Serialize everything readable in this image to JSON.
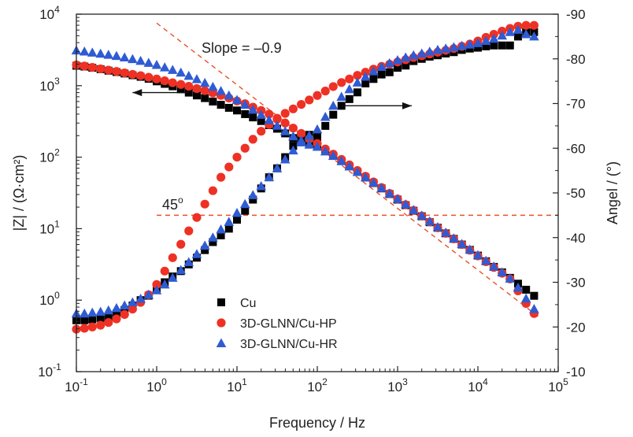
{
  "chart_data": {
    "type": "scatter",
    "title": "",
    "xlabel": "Frequency / Hz",
    "ylabel_left": "|Z| / (Ω·cm²)",
    "ylabel_right": "Angel / (°)",
    "x_scale": "log",
    "xlim": [
      0.1,
      100000
    ],
    "ylim_left": [
      0.1,
      10000
    ],
    "ylim_right": [
      -10,
      -90
    ],
    "x_ticks": [
      {
        "value": 0.1,
        "base": "10",
        "exp": "-1"
      },
      {
        "value": 1,
        "base": "10",
        "exp": "0"
      },
      {
        "value": 10,
        "base": "10",
        "exp": "1"
      },
      {
        "value": 100,
        "base": "10",
        "exp": "2"
      },
      {
        "value": 1000,
        "base": "10",
        "exp": "3"
      },
      {
        "value": 10000,
        "base": "10",
        "exp": "4"
      },
      {
        "value": 100000,
        "base": "10",
        "exp": "5"
      }
    ],
    "y_left_ticks": [
      {
        "value": 0.1,
        "base": "10",
        "exp": "-1"
      },
      {
        "value": 1,
        "base": "10",
        "exp": "0"
      },
      {
        "value": 10,
        "base": "10",
        "exp": "1"
      },
      {
        "value": 100,
        "base": "10",
        "exp": "2"
      },
      {
        "value": 1000,
        "base": "10",
        "exp": "3"
      },
      {
        "value": 10000,
        "base": "10",
        "exp": "4"
      }
    ],
    "y_right_ticks": [
      -10,
      -20,
      -30,
      -40,
      -50,
      -60,
      -70,
      -80,
      -90
    ],
    "grid": false,
    "legend_position": "bottom-left",
    "annotations": {
      "slope_text": "Slope = –0.9",
      "angle_base": "45",
      "angle_sup": "o"
    },
    "reference_lines": {
      "slope_line": {
        "x": [
          1.0,
          60000
        ],
        "y": [
          7500,
          0.56
        ]
      },
      "angle_line": {
        "angle": -45,
        "x": [
          1.0,
          100000
        ]
      }
    },
    "arrows": [
      {
        "direction": "left",
        "axis": "left",
        "x_from": 2.5,
        "x_to": 0.5,
        "y": 800
      },
      {
        "direction": "right",
        "axis": "right",
        "x_from": 200,
        "x_to": 1500,
        "angle": -69.5
      }
    ],
    "series": [
      {
        "name": "Cu",
        "marker": "square",
        "color": "#000000",
        "impedance": {
          "x": [
            0.1,
            0.126,
            0.158,
            0.2,
            0.251,
            0.316,
            0.398,
            0.501,
            0.631,
            0.794,
            1,
            1.26,
            1.58,
            2,
            2.51,
            3.16,
            3.98,
            5.01,
            6.31,
            7.94,
            10,
            12.6,
            15.8,
            20,
            25.1,
            31.6,
            39.8,
            50.1,
            63.1,
            79.4,
            100,
            126,
            158,
            200,
            251,
            316,
            398,
            501,
            631,
            794,
            1000,
            1260,
            1580,
            2000,
            2510,
            3160,
            3980,
            5010,
            6310,
            7940,
            10000,
            12600,
            15800,
            20000,
            25100,
            31600,
            39800,
            50100
          ],
          "y": [
            1900,
            1850,
            1780,
            1700,
            1620,
            1550,
            1480,
            1400,
            1330,
            1250,
            1150,
            1060,
            980,
            890,
            800,
            730,
            670,
            600,
            540,
            490,
            450,
            400,
            360,
            320,
            280,
            250,
            215,
            185,
            162,
            150,
            140,
            122,
            104,
            88,
            74,
            62,
            52,
            43.5,
            36.6,
            30.5,
            25.5,
            21.3,
            17.8,
            14.9,
            12.3,
            10.3,
            8.6,
            7.2,
            6,
            5.05,
            4.2,
            3.5,
            2.92,
            2.45,
            2.05,
            1.7,
            1.4,
            1.15
          ]
        },
        "phase": {
          "x": [
            0.1,
            0.126,
            0.158,
            0.2,
            0.251,
            0.316,
            0.398,
            0.501,
            0.631,
            0.794,
            1,
            1.26,
            1.58,
            2,
            2.51,
            3.16,
            3.98,
            5.01,
            6.31,
            7.94,
            10,
            12.6,
            15.8,
            20,
            25.1,
            31.6,
            39.8,
            50.1,
            63.1,
            79.4,
            100,
            126,
            158,
            200,
            251,
            316,
            398,
            501,
            631,
            794,
            1000,
            1260,
            1580,
            2000,
            2510,
            3160,
            3980,
            5010,
            6310,
            7940,
            10000,
            12600,
            15800,
            20000,
            25100,
            31600,
            39800,
            50100
          ],
          "y": [
            -21.5,
            -21.5,
            -21.7,
            -22,
            -22.3,
            -23,
            -23.8,
            -24.8,
            -26,
            -27,
            -28.5,
            -30,
            -31.3,
            -32.5,
            -34,
            -35.5,
            -37.2,
            -39,
            -40.5,
            -42,
            -44,
            -46,
            -48.5,
            -51,
            -53.5,
            -55.5,
            -58,
            -60.5,
            -62,
            -63,
            -62.5,
            -65,
            -67.5,
            -69.5,
            -71,
            -72.5,
            -74.5,
            -75.5,
            -76.5,
            -77,
            -78,
            -78.5,
            -79.5,
            -80,
            -80.5,
            -80.8,
            -81.2,
            -81.5,
            -82,
            -82.3,
            -82.5,
            -82.8,
            -83,
            -83,
            -83,
            -85,
            -86,
            -86
          ]
        }
      },
      {
        "name": "3D-GLNN/Cu-HP",
        "marker": "circle",
        "color": "#ee3124",
        "impedance": {
          "x": [
            0.1,
            0.126,
            0.158,
            0.2,
            0.251,
            0.316,
            0.398,
            0.501,
            0.631,
            0.794,
            1,
            1.26,
            1.58,
            2,
            2.51,
            3.16,
            3.98,
            5.01,
            6.31,
            7.94,
            10,
            12.6,
            15.8,
            20,
            25.1,
            31.6,
            39.8,
            50.1,
            63.1,
            79.4,
            100,
            126,
            158,
            200,
            251,
            316,
            398,
            501,
            631,
            794,
            1000,
            1260,
            1580,
            2000,
            2510,
            3160,
            3980,
            5010,
            6310,
            7940,
            10000,
            12600,
            15800,
            20000,
            25100,
            31600,
            39800,
            50100
          ],
          "y": [
            1950,
            1880,
            1800,
            1720,
            1650,
            1580,
            1510,
            1440,
            1380,
            1310,
            1240,
            1170,
            1100,
            1040,
            980,
            910,
            850,
            790,
            730,
            670,
            610,
            560,
            500,
            450,
            400,
            350,
            300,
            255,
            215,
            180,
            155,
            130,
            110,
            93,
            78,
            65,
            54,
            45,
            37.5,
            31,
            26,
            21.6,
            18,
            15,
            12.4,
            10.3,
            8.6,
            7.2,
            6,
            5,
            4.15,
            3.45,
            2.87,
            2.38,
            1.98,
            1.35,
            0.9,
            0.65
          ]
        },
        "phase": {
          "x": [
            0.1,
            0.126,
            0.158,
            0.2,
            0.251,
            0.316,
            0.398,
            0.501,
            0.631,
            0.794,
            1,
            1.26,
            1.58,
            2,
            2.51,
            3.16,
            3.98,
            5.01,
            6.31,
            7.94,
            10,
            12.6,
            15.8,
            20,
            25.1,
            31.6,
            39.8,
            50.1,
            63.1,
            79.4,
            100,
            126,
            158,
            200,
            251,
            316,
            398,
            501,
            631,
            794,
            1000,
            1260,
            1580,
            2000,
            2510,
            3160,
            3980,
            5010,
            6310,
            7940,
            10000,
            12600,
            15800,
            20000,
            25100,
            31600,
            39800,
            50100
          ],
          "y": [
            -19.5,
            -19.7,
            -20,
            -20.4,
            -21,
            -21.8,
            -22.8,
            -24,
            -25.5,
            -27.2,
            -29.5,
            -32.5,
            -35.5,
            -38.5,
            -41.5,
            -44.5,
            -47.5,
            -50.5,
            -53.5,
            -55.8,
            -58,
            -60,
            -62,
            -63.8,
            -65.3,
            -66.5,
            -67.8,
            -68.8,
            -69.8,
            -70.8,
            -71.8,
            -72.8,
            -73.8,
            -74.7,
            -75.5,
            -76.3,
            -77,
            -77.7,
            -78.3,
            -78.8,
            -79.3,
            -79.8,
            -80.3,
            -80.7,
            -81.1,
            -81.5,
            -81.9,
            -82.3,
            -82.8,
            -83.3,
            -84,
            -84.8,
            -85.5,
            -86.2,
            -86.8,
            -87.3,
            -87.5,
            -87.5
          ]
        }
      },
      {
        "name": "3D-GLNN/Cu-HR",
        "marker": "triangle",
        "color": "#2f5bd3",
        "impedance": {
          "x": [
            0.1,
            0.126,
            0.158,
            0.2,
            0.251,
            0.316,
            0.398,
            0.501,
            0.631,
            0.794,
            1,
            1.26,
            1.58,
            2,
            2.51,
            3.16,
            3.98,
            5.01,
            6.31,
            7.94,
            10,
            12.6,
            15.8,
            20,
            25.1,
            31.6,
            39.8,
            50.1,
            63.1,
            79.4,
            100,
            126,
            158,
            200,
            251,
            316,
            398,
            501,
            631,
            794,
            1000,
            1260,
            1580,
            2000,
            2510,
            3160,
            3980,
            5010,
            6310,
            7940,
            10000,
            12600,
            15800,
            20000,
            25100,
            31600,
            39800,
            50100
          ],
          "y": [
            3100,
            3000,
            2900,
            2800,
            2700,
            2600,
            2480,
            2350,
            2220,
            2080,
            1950,
            1800,
            1660,
            1520,
            1370,
            1230,
            1090,
            960,
            840,
            730,
            630,
            540,
            460,
            390,
            330,
            275,
            230,
            195,
            170,
            150,
            140,
            120,
            104,
            88,
            74,
            62,
            52,
            44,
            37,
            31,
            26,
            21.8,
            18.2,
            15.2,
            12.6,
            10.5,
            8.8,
            7.3,
            6.1,
            5.1,
            4.25,
            3.55,
            2.95,
            2.45,
            2,
            1.5,
            1.05,
            0.75
          ]
        },
        "phase": {
          "x": [
            0.1,
            0.126,
            0.158,
            0.2,
            0.251,
            0.316,
            0.398,
            0.501,
            0.631,
            0.794,
            1,
            1.26,
            1.58,
            2,
            2.51,
            3.16,
            3.98,
            5.01,
            6.31,
            7.94,
            10,
            12.6,
            15.8,
            20,
            25.1,
            31.6,
            39.8,
            50.1,
            63.1,
            79.4,
            100,
            126,
            158,
            200,
            251,
            316,
            398,
            501,
            631,
            794,
            1000,
            1260,
            1580,
            2000,
            2510,
            3160,
            3980,
            5010,
            6310,
            7940,
            10000,
            12600,
            15800,
            20000,
            25100,
            31600,
            39800,
            50100
          ],
          "y": [
            -23,
            -23,
            -23.2,
            -23.4,
            -23.7,
            -24.2,
            -24.8,
            -25.5,
            -26.3,
            -27.2,
            -28.2,
            -29.5,
            -31,
            -32.7,
            -34.5,
            -36.3,
            -38.2,
            -40,
            -41.8,
            -43.5,
            -45.5,
            -47.5,
            -49.5,
            -51.5,
            -53.5,
            -55.5,
            -57.5,
            -59.5,
            -61.3,
            -62.8,
            -64.2,
            -67,
            -69.5,
            -71.5,
            -73.2,
            -74.7,
            -76,
            -77.2,
            -78.2,
            -79,
            -79.7,
            -80.3,
            -80.8,
            -81.2,
            -81.6,
            -82,
            -82.3,
            -82.6,
            -82.9,
            -83.2,
            -83.5,
            -84,
            -84.5,
            -85.2,
            -86,
            -86.5,
            -85.5,
            -85
          ]
        }
      }
    ]
  }
}
